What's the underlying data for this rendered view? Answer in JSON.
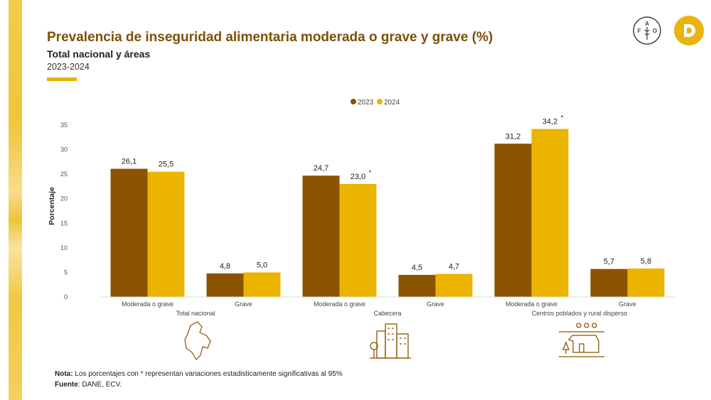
{
  "header": {
    "title": "Prevalencia de inseguridad alimentaria moderada o grave y grave (%)",
    "subtitle": "Total nacional y áreas",
    "period": "2023-2024",
    "logos": [
      "FAO",
      "D"
    ]
  },
  "colors": {
    "s2023": "#8a5400",
    "s2024": "#ebb400",
    "title": "#7f4f07",
    "accent": "#e8b400"
  },
  "chart_data": {
    "type": "bar",
    "ylabel": "Porcentaje",
    "ylim": [
      0,
      35
    ],
    "yticks": [
      0,
      5,
      10,
      15,
      20,
      25,
      30,
      35
    ],
    "grid": false,
    "legend_position": "top-center",
    "categories": [
      "Moderada o grave",
      "Grave",
      "Moderada o grave",
      "Grave",
      "Moderada o grave",
      "Grave"
    ],
    "groups": [
      {
        "label": "Total nacional",
        "icon": "colombia-map-icon"
      },
      {
        "label": "Cabecera",
        "icon": "city-buildings-icon"
      },
      {
        "label": "Centros poblados y rural disperso",
        "icon": "rural-house-icon"
      }
    ],
    "series": [
      {
        "name": "2023",
        "values": [
          26.1,
          4.8,
          24.7,
          4.5,
          31.2,
          5.7
        ],
        "labels": [
          "26,1",
          "4,8",
          "24,7",
          "4,5",
          "31,2",
          "5,7"
        ],
        "significant": [
          false,
          false,
          false,
          false,
          false,
          false
        ]
      },
      {
        "name": "2024",
        "values": [
          25.5,
          5.0,
          23.0,
          4.7,
          34.2,
          5.8
        ],
        "labels": [
          "25,5",
          "5,0",
          "23,0",
          "4,7",
          "34,2",
          "5,8"
        ],
        "significant": [
          false,
          false,
          true,
          false,
          true,
          false
        ]
      }
    ]
  },
  "footer": {
    "nota_label": "Nota:",
    "nota_text": "Los porcentajes con * representan variaciones estadisticamente significativas al 95%",
    "fuente_label": "Fuente",
    "fuente_text": ": DANE, ECV."
  }
}
